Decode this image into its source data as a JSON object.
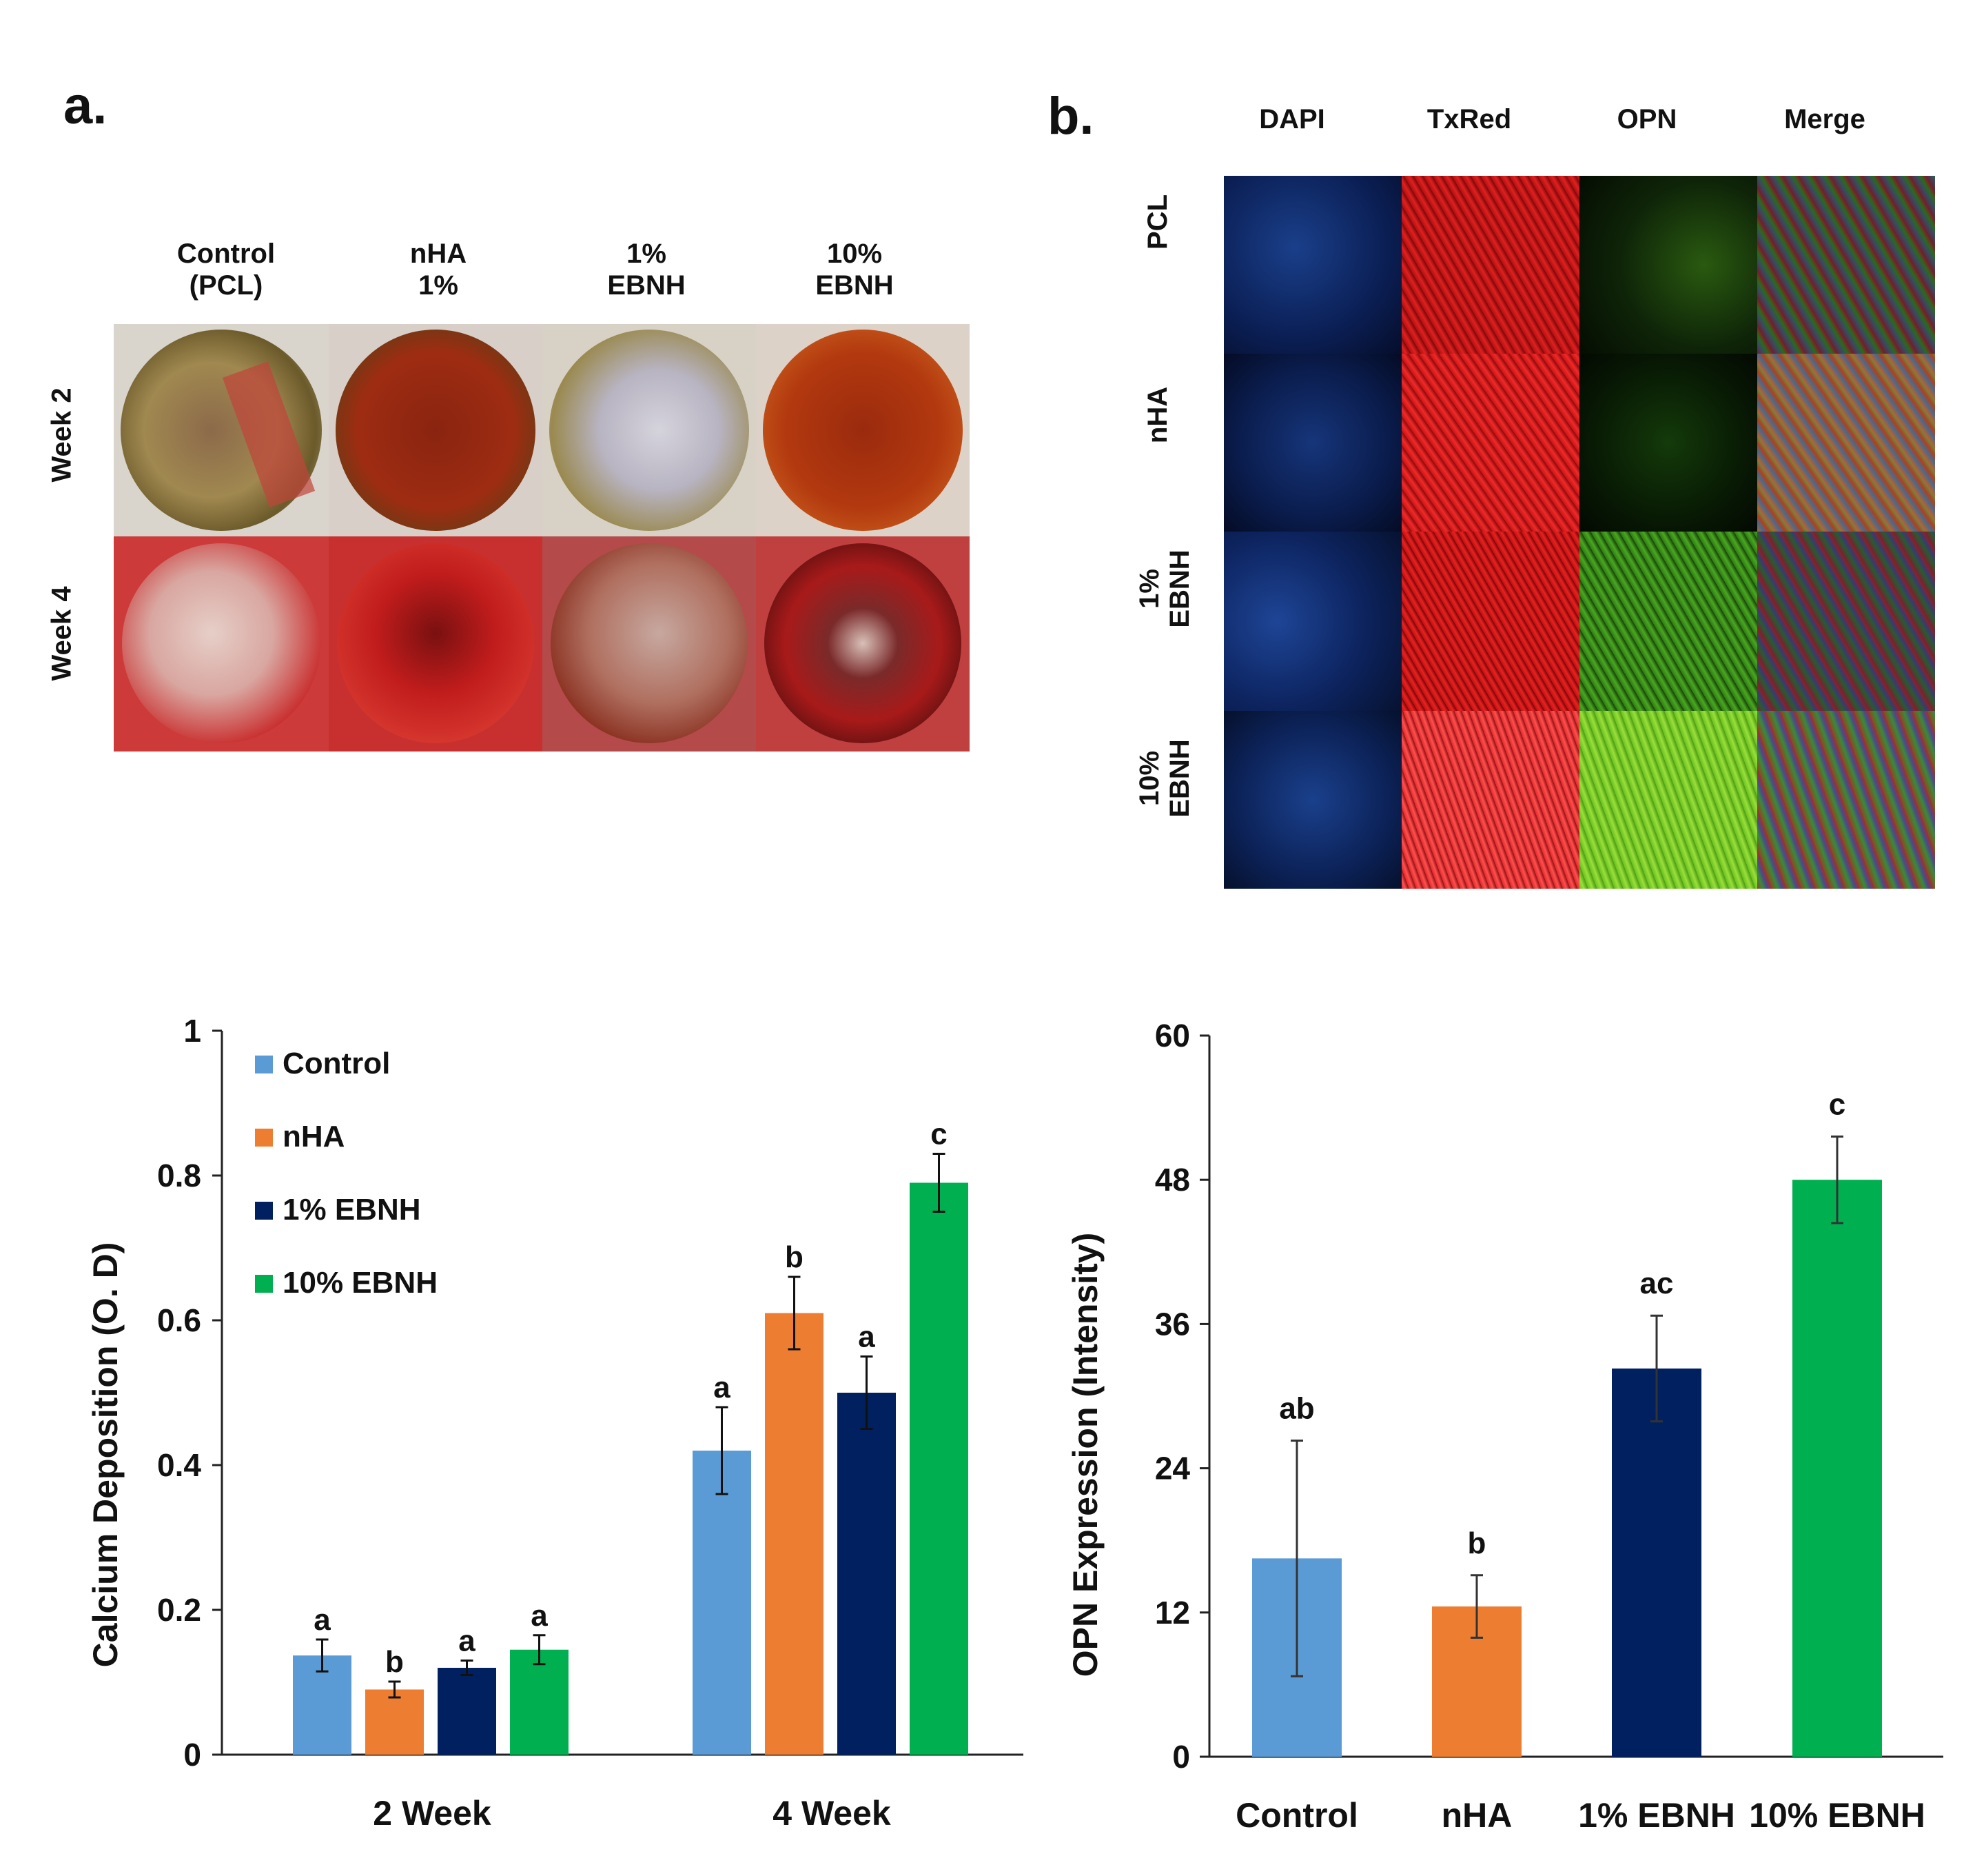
{
  "panel_a": {
    "label": "a.",
    "columns": [
      {
        "line1": "Control",
        "line2": "(PCL)"
      },
      {
        "line1": "nHA",
        "line2": "1%"
      },
      {
        "line1": "1%",
        "line2": "EBNH"
      },
      {
        "line1": "10%",
        "line2": "EBNH"
      }
    ],
    "rows": [
      "Week 2",
      "Week 4"
    ]
  },
  "panel_b": {
    "label": "b.",
    "channels": [
      "DAPI",
      "TxRed",
      "OPN",
      "Merge"
    ],
    "rows": [
      {
        "line1": "PCL",
        "line2": ""
      },
      {
        "line1": "nHA",
        "line2": ""
      },
      {
        "line1": "1%",
        "line2": "EBNH"
      },
      {
        "line1": "10%",
        "line2": "EBNH"
      }
    ]
  },
  "colors": {
    "control": "#5b9bd5",
    "nha": "#ed7d31",
    "ebnh1": "#002060",
    "ebnh10": "#00b050"
  },
  "chart_data": [
    {
      "type": "bar",
      "ylabel": "Calcium Deposition (O. D)",
      "xlabel": "",
      "ylim": [
        0,
        1
      ],
      "yticks": [
        "0",
        "0.2",
        "0.4",
        "0.6",
        "0.8",
        "1"
      ],
      "ytick_values": [
        0,
        0.2,
        0.4,
        0.6,
        0.8,
        1
      ],
      "categories": [
        "2 Week",
        "4 Week"
      ],
      "legend": [
        "Control",
        "nHA",
        "1% EBNH",
        "10% EBNH"
      ],
      "legend_position": "top-left",
      "series": [
        {
          "name": "Control",
          "values": [
            0.137,
            0.42
          ],
          "errors": [
            0.022,
            0.06
          ],
          "labels": [
            "a",
            "a"
          ]
        },
        {
          "name": "nHA",
          "values": [
            0.09,
            0.61
          ],
          "errors": [
            0.011,
            0.05
          ],
          "labels": [
            "b",
            "b"
          ]
        },
        {
          "name": "1% EBNH",
          "values": [
            0.12,
            0.5
          ],
          "errors": [
            0.01,
            0.05
          ],
          "labels": [
            "a",
            "a"
          ]
        },
        {
          "name": "10% EBNH",
          "values": [
            0.145,
            0.79
          ],
          "errors": [
            0.02,
            0.04
          ],
          "labels": [
            "a",
            "c"
          ]
        }
      ]
    },
    {
      "type": "bar",
      "ylabel": "OPN Expression (Intensity)",
      "xlabel": "",
      "ylim": [
        0,
        60
      ],
      "yticks": [
        "0",
        "12",
        "24",
        "36",
        "48",
        "60"
      ],
      "ytick_values": [
        0,
        12,
        24,
        36,
        48,
        60
      ],
      "categories": [
        "Control",
        "nHA",
        "1% EBNH",
        "10% EBNH"
      ],
      "values": [
        16.5,
        12.5,
        32.3,
        48
      ],
      "errors": [
        9.8,
        2.6,
        4.4,
        3.6
      ],
      "labels": [
        "ab",
        "b",
        "ac",
        "c"
      ]
    }
  ]
}
